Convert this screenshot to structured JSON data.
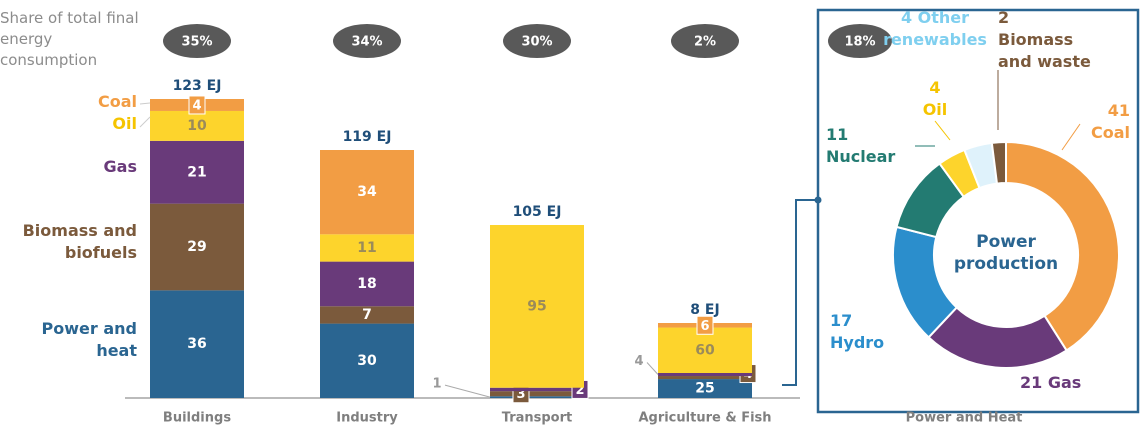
{
  "chart_data": [
    {
      "type": "stacked_bar",
      "label": "Share of total final energy consumption",
      "categories": [
        "Buildings",
        "Industry",
        "Transport",
        "Agriculture & Fish"
      ],
      "totals": [
        "123 EJ",
        "119 EJ",
        "105 EJ",
        "8 EJ"
      ],
      "shares": [
        35,
        34,
        30,
        2
      ],
      "share_labels": [
        "35%",
        "34%",
        "30%",
        "2%"
      ],
      "series": [
        {
          "name": "Power and heat",
          "color": "#2a6591",
          "values": [
            36,
            30,
            1,
            25
          ]
        },
        {
          "name": "Biomass and biofuels",
          "color": "#7b5a3c",
          "values": [
            29,
            7,
            3,
            4
          ]
        },
        {
          "name": "Gas",
          "color": "#693a7a",
          "values": [
            21,
            18,
            2,
            4
          ]
        },
        {
          "name": "Oil",
          "color": "#fdd42c",
          "values": [
            10,
            11,
            95,
            60
          ]
        },
        {
          "name": "Coal",
          "color": "#f29d44",
          "values": [
            4,
            34,
            null,
            6
          ]
        }
      ]
    },
    {
      "type": "pie",
      "title": "Power and Heat",
      "center_label": "Power production",
      "share": 18,
      "share_label": "18%",
      "categories": [
        "Coal",
        "Gas",
        "Hydro",
        "Nuclear",
        "Oil",
        "Other renewables",
        "Biomass and waste"
      ],
      "values": [
        41,
        21,
        17,
        11,
        4,
        4,
        2
      ],
      "colors": [
        "#f29d44",
        "#693a7a",
        "#2b8ecc",
        "#237b72",
        "#fdd42c",
        "#dff2fb",
        "#7b5a3c"
      ]
    }
  ]
}
